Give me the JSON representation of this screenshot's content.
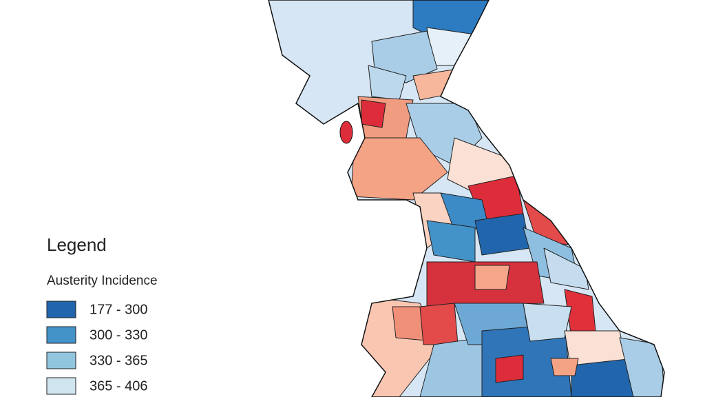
{
  "legend": {
    "title": "Legend",
    "subtitle": "Austerity Incidence",
    "items": [
      {
        "label": "177 - 300",
        "color": "#2166ac"
      },
      {
        "label": "300 - 330",
        "color": "#4393c8"
      },
      {
        "label": "330 - 365",
        "color": "#92c5de"
      },
      {
        "label": "365 - 406",
        "color": "#d1e5f0"
      }
    ]
  }
}
